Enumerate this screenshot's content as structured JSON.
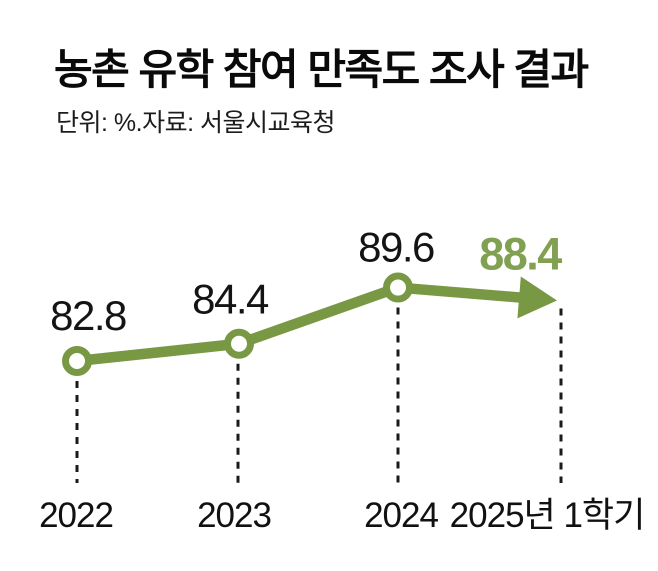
{
  "chart_data": {
    "type": "line",
    "title": "농촌 유학 참여 만족도 조사 결과",
    "subtitle": "단위: %.자료: 서울시교육청",
    "unit": "%",
    "source": "서울시교육청",
    "categories": [
      "2022",
      "2023",
      "2024",
      "2025년 1학기"
    ],
    "values": [
      82.8,
      84.4,
      89.6,
      88.4
    ],
    "value_labels": [
      "82.8",
      "84.4",
      "89.6",
      "88.4"
    ],
    "highlight": {
      "index": 3,
      "style": "arrow",
      "note": "latest period drawn as arrow with green bold label"
    },
    "marker": "open-circle",
    "grid": false,
    "legend": "none",
    "ylim": [
      81,
      92
    ],
    "colors": {
      "line": "#799844",
      "highlight_text": "#81a052",
      "marker_fill": "#ffffff",
      "value_text": "#141414",
      "axis_text": "#111111",
      "dash_line": "#1a1a1a",
      "background": "#ffffff"
    }
  }
}
